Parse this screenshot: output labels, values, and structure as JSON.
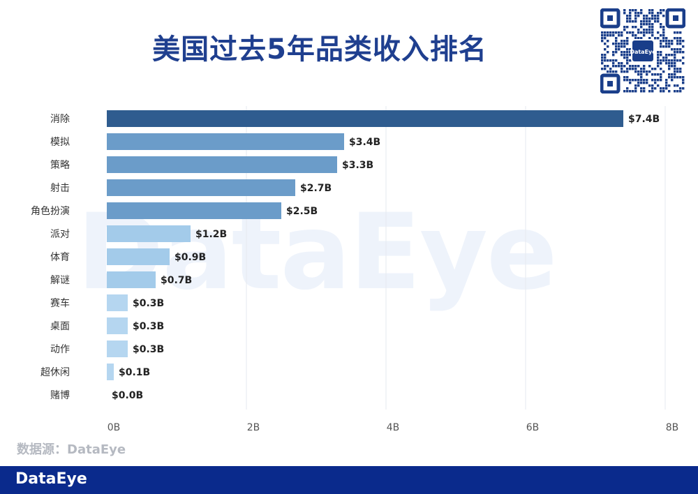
{
  "title": "美国过去5年品类收入排名",
  "source": "数据源：DataEye",
  "footer_logo": "DataEye",
  "watermark": "DataEye",
  "qr_label": "DataEye",
  "chart_data": {
    "type": "bar",
    "orientation": "horizontal",
    "categories": [
      "消除",
      "模拟",
      "策略",
      "射击",
      "角色扮演",
      "派对",
      "体育",
      "解谜",
      "赛车",
      "桌面",
      "动作",
      "超休闲",
      "赌博"
    ],
    "values": [
      7.4,
      3.4,
      3.3,
      2.7,
      2.5,
      1.2,
      0.9,
      0.7,
      0.3,
      0.3,
      0.3,
      0.1,
      0.0
    ],
    "value_labels": [
      "$7.4B",
      "$3.4B",
      "$3.3B",
      "$2.7B",
      "$2.5B",
      "$1.2B",
      "$0.9B",
      "$0.7B",
      "$0.3B",
      "$0.3B",
      "$0.3B",
      "$0.1B",
      "$0.0B"
    ],
    "xlim": [
      0,
      8
    ],
    "xticks": [
      0,
      2,
      4,
      6,
      8
    ],
    "xtick_labels": [
      "0B",
      "2B",
      "4B",
      "6B",
      "8B"
    ],
    "grid": true,
    "colors": [
      "#2f5c8f",
      "#6b9cc9",
      "#6b9cc9",
      "#6b9cc9",
      "#6b9cc9",
      "#a3cbea",
      "#a3cbea",
      "#a3cbea",
      "#b5d6f0",
      "#b5d6f0",
      "#b5d6f0",
      "#b5d6f0",
      "#b5d6f0"
    ]
  }
}
